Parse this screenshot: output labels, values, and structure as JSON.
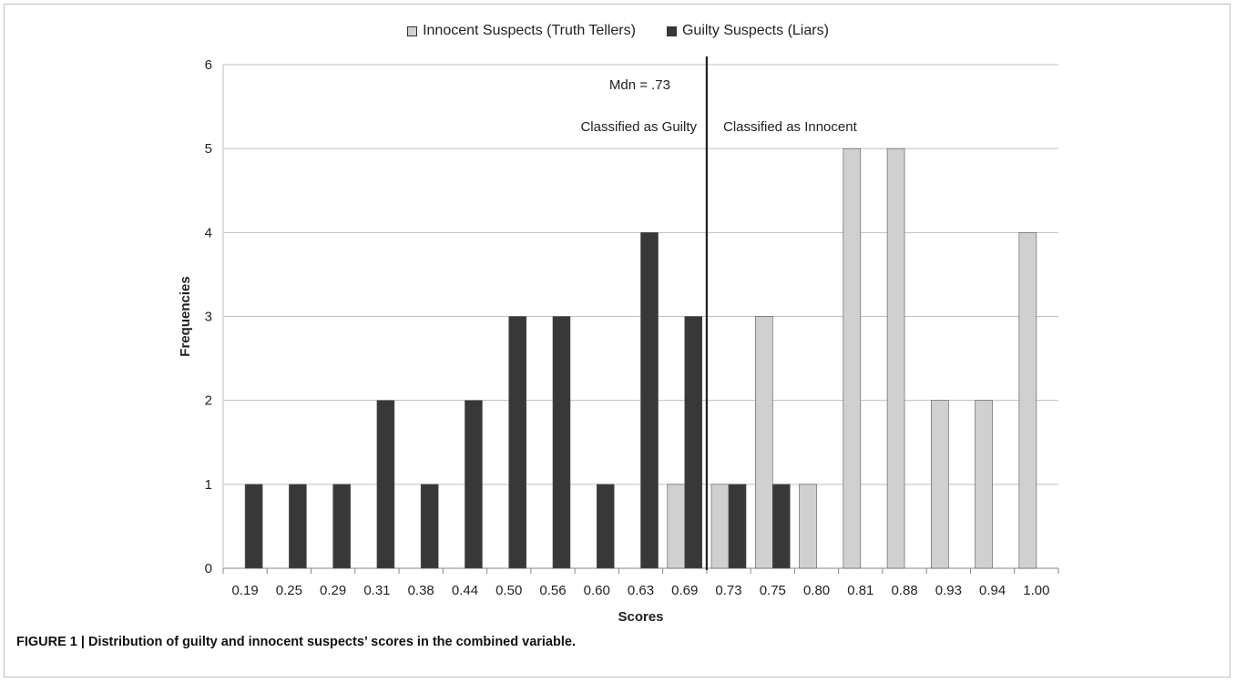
{
  "caption": "FIGURE 1 | Distribution of guilty and innocent suspects’ scores in the combined variable.",
  "colors": {
    "innocent": "#d0d0d0",
    "guilty": "#383838",
    "grid": "#bfbfbf",
    "divider": "#222222"
  },
  "chart_data": {
    "type": "bar",
    "xlabel": "Scores",
    "ylabel": "Frequencies",
    "ylim": [
      0,
      6
    ],
    "yticks": [
      "0",
      "1",
      "2",
      "3",
      "4",
      "5",
      "6"
    ],
    "grid": true,
    "legend_position": "top-center",
    "categories": [
      "0.19",
      "0.25",
      "0.29",
      "0.31",
      "0.38",
      "0.44",
      "0.50",
      "0.56",
      "0.60",
      "0.63",
      "0.69",
      "0.73",
      "0.75",
      "0.80",
      "0.81",
      "0.88",
      "0.93",
      "0.94",
      "1.00"
    ],
    "series": [
      {
        "name": "Innocent Suspects (Truth Tellers)",
        "values": [
          0,
          0,
          0,
          0,
          0,
          0,
          0,
          0,
          0,
          0,
          1,
          1,
          3,
          1,
          5,
          5,
          2,
          2,
          4
        ]
      },
      {
        "name": "Guilty Suspects (Liars)",
        "values": [
          1,
          1,
          1,
          2,
          1,
          2,
          3,
          3,
          1,
          4,
          3,
          1,
          1,
          0,
          0,
          0,
          0,
          0,
          0
        ]
      }
    ],
    "annotations": {
      "median_label": "Mdn = .73",
      "left_label": "Classified as Guilty",
      "right_label": "Classified as Innocent"
    }
  }
}
